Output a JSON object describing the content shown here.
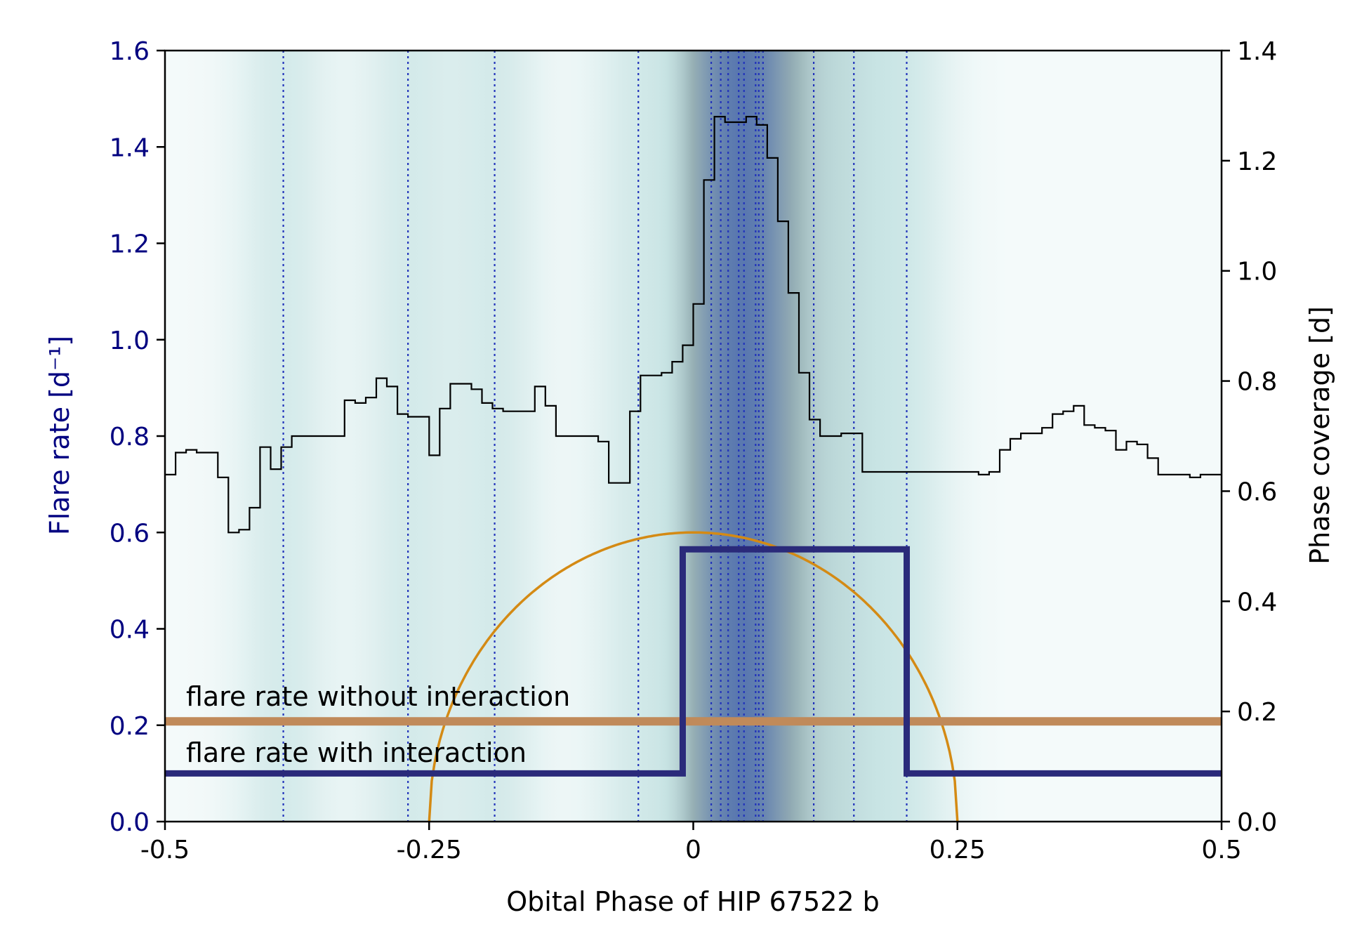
{
  "chart_data": {
    "type": "line",
    "xlabel": "Obital Phase of HIP 67522 b",
    "ylabel_left": "Flare rate [d⁻¹]",
    "ylabel_right": "Phase coverage [d]",
    "xlim": [
      -0.5,
      0.5
    ],
    "ylim_left": [
      0,
      1.6
    ],
    "ylim_right": [
      0,
      1.4
    ],
    "x_ticks": [
      {
        "value": -0.5,
        "label": "-0.5"
      },
      {
        "value": -0.25,
        "label": "-0.25"
      },
      {
        "value": 0,
        "label": "0"
      },
      {
        "value": 0.25,
        "label": "0.25"
      },
      {
        "value": 0.5,
        "label": "0.5"
      }
    ],
    "y_ticks_left": [
      {
        "value": 0.0,
        "label": "0.0"
      },
      {
        "value": 0.2,
        "label": "0.2"
      },
      {
        "value": 0.4,
        "label": "0.4"
      },
      {
        "value": 0.6,
        "label": "0.6"
      },
      {
        "value": 0.8,
        "label": "0.8"
      },
      {
        "value": 1.0,
        "label": "1.0"
      },
      {
        "value": 1.2,
        "label": "1.2"
      },
      {
        "value": 1.4,
        "label": "1.4"
      },
      {
        "value": 1.6,
        "label": "1.6"
      }
    ],
    "y_ticks_right": [
      {
        "value": 0.0,
        "label": "0.0"
      },
      {
        "value": 0.2,
        "label": "0.2"
      },
      {
        "value": 0.4,
        "label": "0.4"
      },
      {
        "value": 0.6,
        "label": "0.6"
      },
      {
        "value": 0.8,
        "label": "0.8"
      },
      {
        "value": 1.0,
        "label": "1.0"
      },
      {
        "value": 1.2,
        "label": "1.2"
      },
      {
        "value": 1.4,
        "label": "1.4"
      }
    ],
    "flare_times": [
      -0.388,
      -0.27,
      -0.188,
      -0.052,
      0.017,
      0.026,
      0.033,
      0.043,
      0.048,
      0.059,
      0.062,
      0.066,
      0.114,
      0.152,
      0.202
    ],
    "flare_rate_without_interaction": {
      "label": "flare rate without interaction",
      "value": 0.208,
      "color": "#c08a5a"
    },
    "flare_rate_with_interaction": {
      "label": "flare rate with interaction",
      "low": 0.1,
      "high": 0.565,
      "x_start": -0.01,
      "x_end": 0.202,
      "color": "#2a2a7a"
    },
    "interaction_curve": {
      "type": "half-ellipse",
      "center": 0,
      "half_width": 0.25,
      "peak": 0.6,
      "color": "#d48a14"
    },
    "phase_coverage": {
      "x": [
        -0.495,
        -0.485,
        -0.475,
        -0.465,
        -0.455,
        -0.445,
        -0.435,
        -0.425,
        -0.415,
        -0.405,
        -0.395,
        -0.385,
        -0.375,
        -0.365,
        -0.355,
        -0.345,
        -0.335,
        -0.325,
        -0.315,
        -0.305,
        -0.295,
        -0.285,
        -0.275,
        -0.265,
        -0.255,
        -0.245,
        -0.235,
        -0.225,
        -0.215,
        -0.205,
        -0.195,
        -0.185,
        -0.175,
        -0.165,
        -0.155,
        -0.145,
        -0.135,
        -0.125,
        -0.115,
        -0.105,
        -0.095,
        -0.085,
        -0.075,
        -0.065,
        -0.055,
        -0.045,
        -0.035,
        -0.025,
        -0.015,
        -0.005,
        0.005,
        0.015,
        0.025,
        0.035,
        0.045,
        0.055,
        0.065,
        0.075,
        0.085,
        0.095,
        0.105,
        0.115,
        0.125,
        0.135,
        0.145,
        0.155,
        0.165,
        0.175,
        0.185,
        0.195,
        0.205,
        0.215,
        0.225,
        0.235,
        0.245,
        0.255,
        0.265,
        0.275,
        0.285,
        0.295,
        0.305,
        0.315,
        0.325,
        0.335,
        0.345,
        0.355,
        0.365,
        0.375,
        0.385,
        0.395,
        0.405,
        0.415,
        0.425,
        0.435,
        0.445,
        0.455,
        0.465,
        0.475,
        0.485,
        0.495
      ],
      "values": [
        0.63,
        0.67,
        0.675,
        0.67,
        0.67,
        0.625,
        0.525,
        0.53,
        0.57,
        0.68,
        0.64,
        0.68,
        0.7,
        0.7,
        0.7,
        0.7,
        0.7,
        0.765,
        0.76,
        0.77,
        0.805,
        0.79,
        0.74,
        0.735,
        0.735,
        0.665,
        0.75,
        0.795,
        0.795,
        0.785,
        0.76,
        0.75,
        0.745,
        0.745,
        0.745,
        0.79,
        0.755,
        0.7,
        0.7,
        0.7,
        0.7,
        0.69,
        0.615,
        0.615,
        0.745,
        0.81,
        0.81,
        0.815,
        0.835,
        0.865,
        0.94,
        1.165,
        1.28,
        1.27,
        1.27,
        1.28,
        1.265,
        1.205,
        1.09,
        0.96,
        0.815,
        0.73,
        0.7,
        0.7,
        0.705,
        0.705,
        0.635,
        0.635,
        0.635,
        0.635,
        0.635,
        0.635,
        0.635,
        0.635,
        0.635,
        0.635,
        0.635,
        0.63,
        0.635,
        0.675,
        0.695,
        0.705,
        0.705,
        0.715,
        0.74,
        0.745,
        0.755,
        0.72,
        0.715,
        0.71,
        0.675,
        0.69,
        0.685,
        0.66,
        0.63,
        0.63,
        0.63,
        0.625,
        0.63,
        0.63
      ]
    }
  }
}
